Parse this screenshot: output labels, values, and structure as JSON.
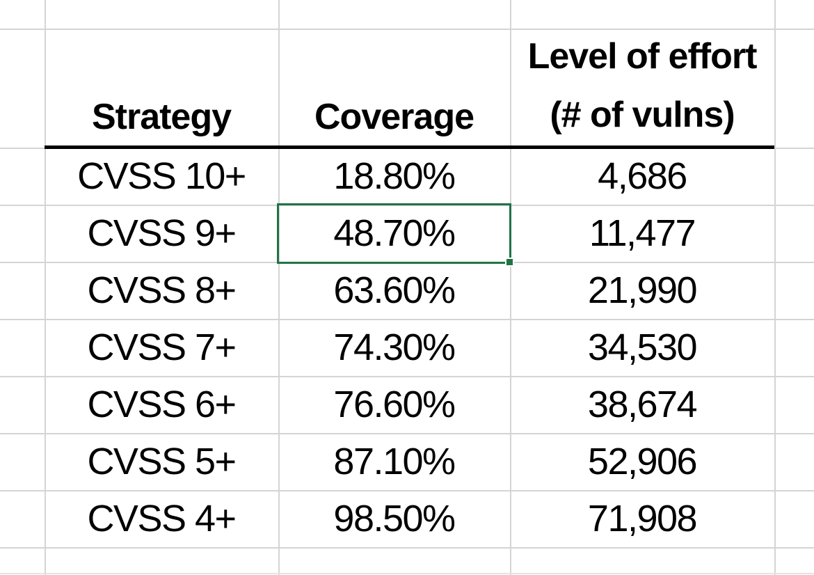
{
  "table": {
    "headers": {
      "strategy": "Strategy",
      "coverage": "Coverage",
      "effort_line1": "Level of effort",
      "effort_line2": "(# of vulns)"
    },
    "rows": [
      {
        "strategy": "CVSS 10+",
        "coverage": "18.80%",
        "effort": "4,686"
      },
      {
        "strategy": "CVSS 9+",
        "coverage": "48.70%",
        "effort": "11,477"
      },
      {
        "strategy": "CVSS 8+",
        "coverage": "63.60%",
        "effort": "21,990"
      },
      {
        "strategy": "CVSS 7+",
        "coverage": "74.30%",
        "effort": "34,530"
      },
      {
        "strategy": "CVSS 6+",
        "coverage": "76.60%",
        "effort": "38,674"
      },
      {
        "strategy": "CVSS 5+",
        "coverage": "87.10%",
        "effort": "52,906"
      },
      {
        "strategy": "CVSS 4+",
        "coverage": "98.50%",
        "effort": "71,908"
      }
    ],
    "selection": {
      "selected_value": "48.70%",
      "selected_row": "CVSS 9+",
      "selected_column": "Coverage"
    }
  },
  "colors": {
    "selection_green": "#217346",
    "gridline": "#d4d4d4",
    "header_rule": "#000000",
    "text": "#000000",
    "background": "#ffffff"
  }
}
